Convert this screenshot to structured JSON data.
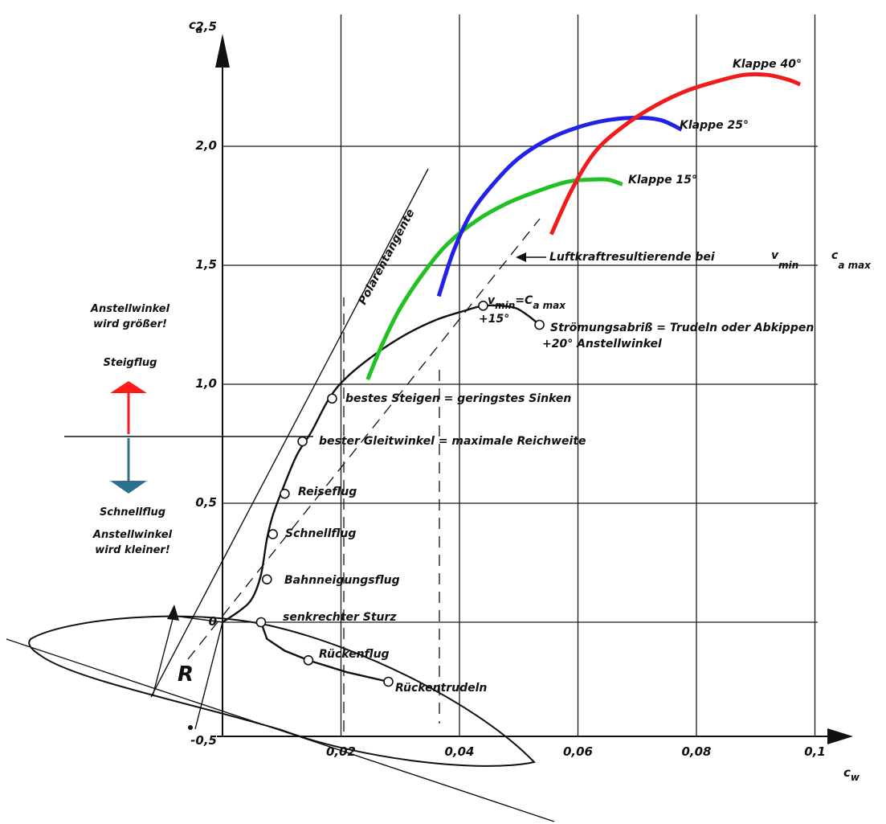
{
  "chart_data": {
    "type": "line",
    "title": "",
    "xlabel": "c_W",
    "ylabel": "c_a",
    "x_ticks": [
      "0,02",
      "0,04",
      "0,06",
      "0,08",
      "0,1"
    ],
    "y_ticks": [
      "0,5",
      "1,0",
      "1,5",
      "2,0",
      "2,5"
    ],
    "y_tick_labels": [
      {
        "v": 2.5,
        "text": "2,5"
      },
      {
        "v": 2.0,
        "text": "2,0"
      },
      {
        "v": 1.5,
        "text": "1,5"
      },
      {
        "v": 1.0,
        "text": "1,0"
      },
      {
        "v": 0.5,
        "text": "0,5"
      },
      {
        "v": 0.0,
        "text": "0"
      },
      {
        "v": -0.5,
        "text": "-0,5"
      }
    ],
    "xlim": [
      0,
      0.1
    ],
    "ylim": [
      -0.5,
      2.5
    ],
    "grid": true,
    "colors": {
      "main": "#111111",
      "klappe15": "#22c022",
      "klappe25": "#2222e6",
      "klappe40": "#ee1c1c",
      "steig_arrow": "#ff1a1a",
      "schnell_arrow": "#2d7090"
    },
    "series": [
      {
        "name": "",
        "x": [
          0.0,
          0.003,
          0.005,
          0.0065,
          0.0075,
          0.0085,
          0.01,
          0.0125,
          0.015,
          0.018,
          0.021,
          0.026,
          0.031,
          0.036,
          0.041,
          0.044,
          0.047,
          0.0495,
          0.0515,
          0.0535
        ],
        "y": [
          0.0,
          0.05,
          0.1,
          0.2,
          0.35,
          0.45,
          0.55,
          0.7,
          0.8,
          0.94,
          1.03,
          1.13,
          1.21,
          1.27,
          1.31,
          1.33,
          1.33,
          1.32,
          1.29,
          1.25
        ]
      },
      {
        "name": "Klappe 15°",
        "x": [
          0.0245,
          0.027,
          0.03,
          0.034,
          0.038,
          0.043,
          0.048,
          0.053,
          0.058,
          0.062,
          0.065,
          0.0675
        ],
        "y": [
          1.02,
          1.17,
          1.32,
          1.47,
          1.59,
          1.69,
          1.76,
          1.81,
          1.85,
          1.86,
          1.86,
          1.84
        ]
      },
      {
        "name": "Klappe 25°",
        "x": [
          0.0365,
          0.039,
          0.042,
          0.046,
          0.05,
          0.055,
          0.06,
          0.065,
          0.07,
          0.074,
          0.0775
        ],
        "y": [
          1.37,
          1.56,
          1.72,
          1.85,
          1.95,
          2.03,
          2.08,
          2.11,
          2.12,
          2.11,
          2.07
        ]
      },
      {
        "name": "Klappe 40°",
        "x": [
          0.0555,
          0.059,
          0.063,
          0.068,
          0.073,
          0.078,
          0.083,
          0.088,
          0.092,
          0.0955,
          0.0975
        ],
        "y": [
          1.63,
          1.82,
          1.98,
          2.09,
          2.17,
          2.23,
          2.27,
          2.3,
          2.3,
          2.28,
          2.26
        ]
      }
    ],
    "points": [
      {
        "label": "Rückentrudeln",
        "x": 0.028,
        "y": -0.25
      },
      {
        "label": "Rückenflug",
        "x": 0.0145,
        "y": -0.16
      },
      {
        "label": "senkrechter Sturz",
        "x": 0.0065,
        "y": 0.0
      },
      {
        "label": "Bahnneigungsflug",
        "x": 0.0075,
        "y": 0.18
      },
      {
        "label": "Schnellflug",
        "x": 0.0085,
        "y": 0.37
      },
      {
        "label": "Reiseflug",
        "x": 0.0105,
        "y": 0.54
      },
      {
        "label": "bester Gleitwinkel = maximale Reichweite",
        "x": 0.0135,
        "y": 0.76
      },
      {
        "label": "bestes Steigen = geringstes Sinken",
        "x": 0.0185,
        "y": 0.94
      },
      {
        "label": "v_min = c_a max",
        "x": 0.044,
        "y": 1.33
      },
      {
        "label": "Strömungsabriß = Trudeln oder Abkippen",
        "x": 0.0535,
        "y": 1.25
      }
    ],
    "annotations": {
      "tangent_label": "Polarentangente",
      "resultant_label": "Luftkraftresultierende bei",
      "resultant_v": "v",
      "resultant_min": "min",
      "resultant_c": "c",
      "resultant_amax": "a max",
      "vmin_v": "v",
      "vmin_sub": "min",
      "vmin_eq": "=C",
      "vmin_sub2": "a max",
      "angle15": "+15°",
      "angle20": "+20° Anstellwinkel",
      "stall_text": "Strömungsabriß = Trudeln oder Abkippen",
      "r_label": "R",
      "klappe15": "Klappe 15°",
      "klappe25": "Klappe 25°",
      "klappe40": "Klappe 40°"
    },
    "side_labels": {
      "anstell_up_1": "Anstellwinkel",
      "anstell_up_2": "wird größer!",
      "steigflug": "Steigflug",
      "schnellflug": "Schnellflug",
      "anstell_down_1": "Anstellwinkel",
      "anstell_down_2": "wird kleiner!"
    },
    "axis_labels": {
      "ca_c": "c",
      "ca_sub": "a",
      "cw_c": "c",
      "cw_sub": "w"
    }
  }
}
